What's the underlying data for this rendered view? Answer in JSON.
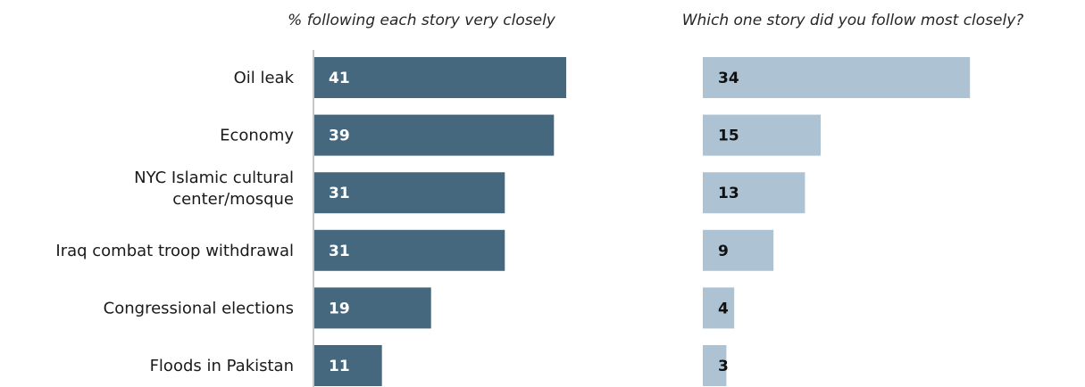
{
  "chart_data": [
    {
      "type": "bar",
      "orientation": "horizontal",
      "title": "% following each story very closely",
      "categories": [
        "Oil leak",
        "Economy",
        "NYC Islamic cultural center/mosque",
        "Iraq combat troop withdrawal",
        "Congressional elections",
        "Floods in Pakistan"
      ],
      "category_lines": [
        [
          "Oil leak"
        ],
        [
          "Economy"
        ],
        [
          "NYC Islamic cultural",
          "center/mosque"
        ],
        [
          "Iraq combat troop withdrawal"
        ],
        [
          "Congressional elections"
        ],
        [
          "Floods in Pakistan"
        ]
      ],
      "values": [
        41,
        39,
        31,
        31,
        19,
        11
      ],
      "color": "#46687f",
      "grid": false
    },
    {
      "type": "bar",
      "orientation": "horizontal",
      "title": "Which one story did you follow most closely?",
      "categories": [
        "Oil leak",
        "Economy",
        "NYC Islamic cultural center/mosque",
        "Iraq combat troop withdrawal",
        "Congressional elections",
        "Floods in Pakistan"
      ],
      "values": [
        34,
        15,
        13,
        9,
        4,
        3
      ],
      "color": "#adc3d3",
      "grid": false
    }
  ]
}
